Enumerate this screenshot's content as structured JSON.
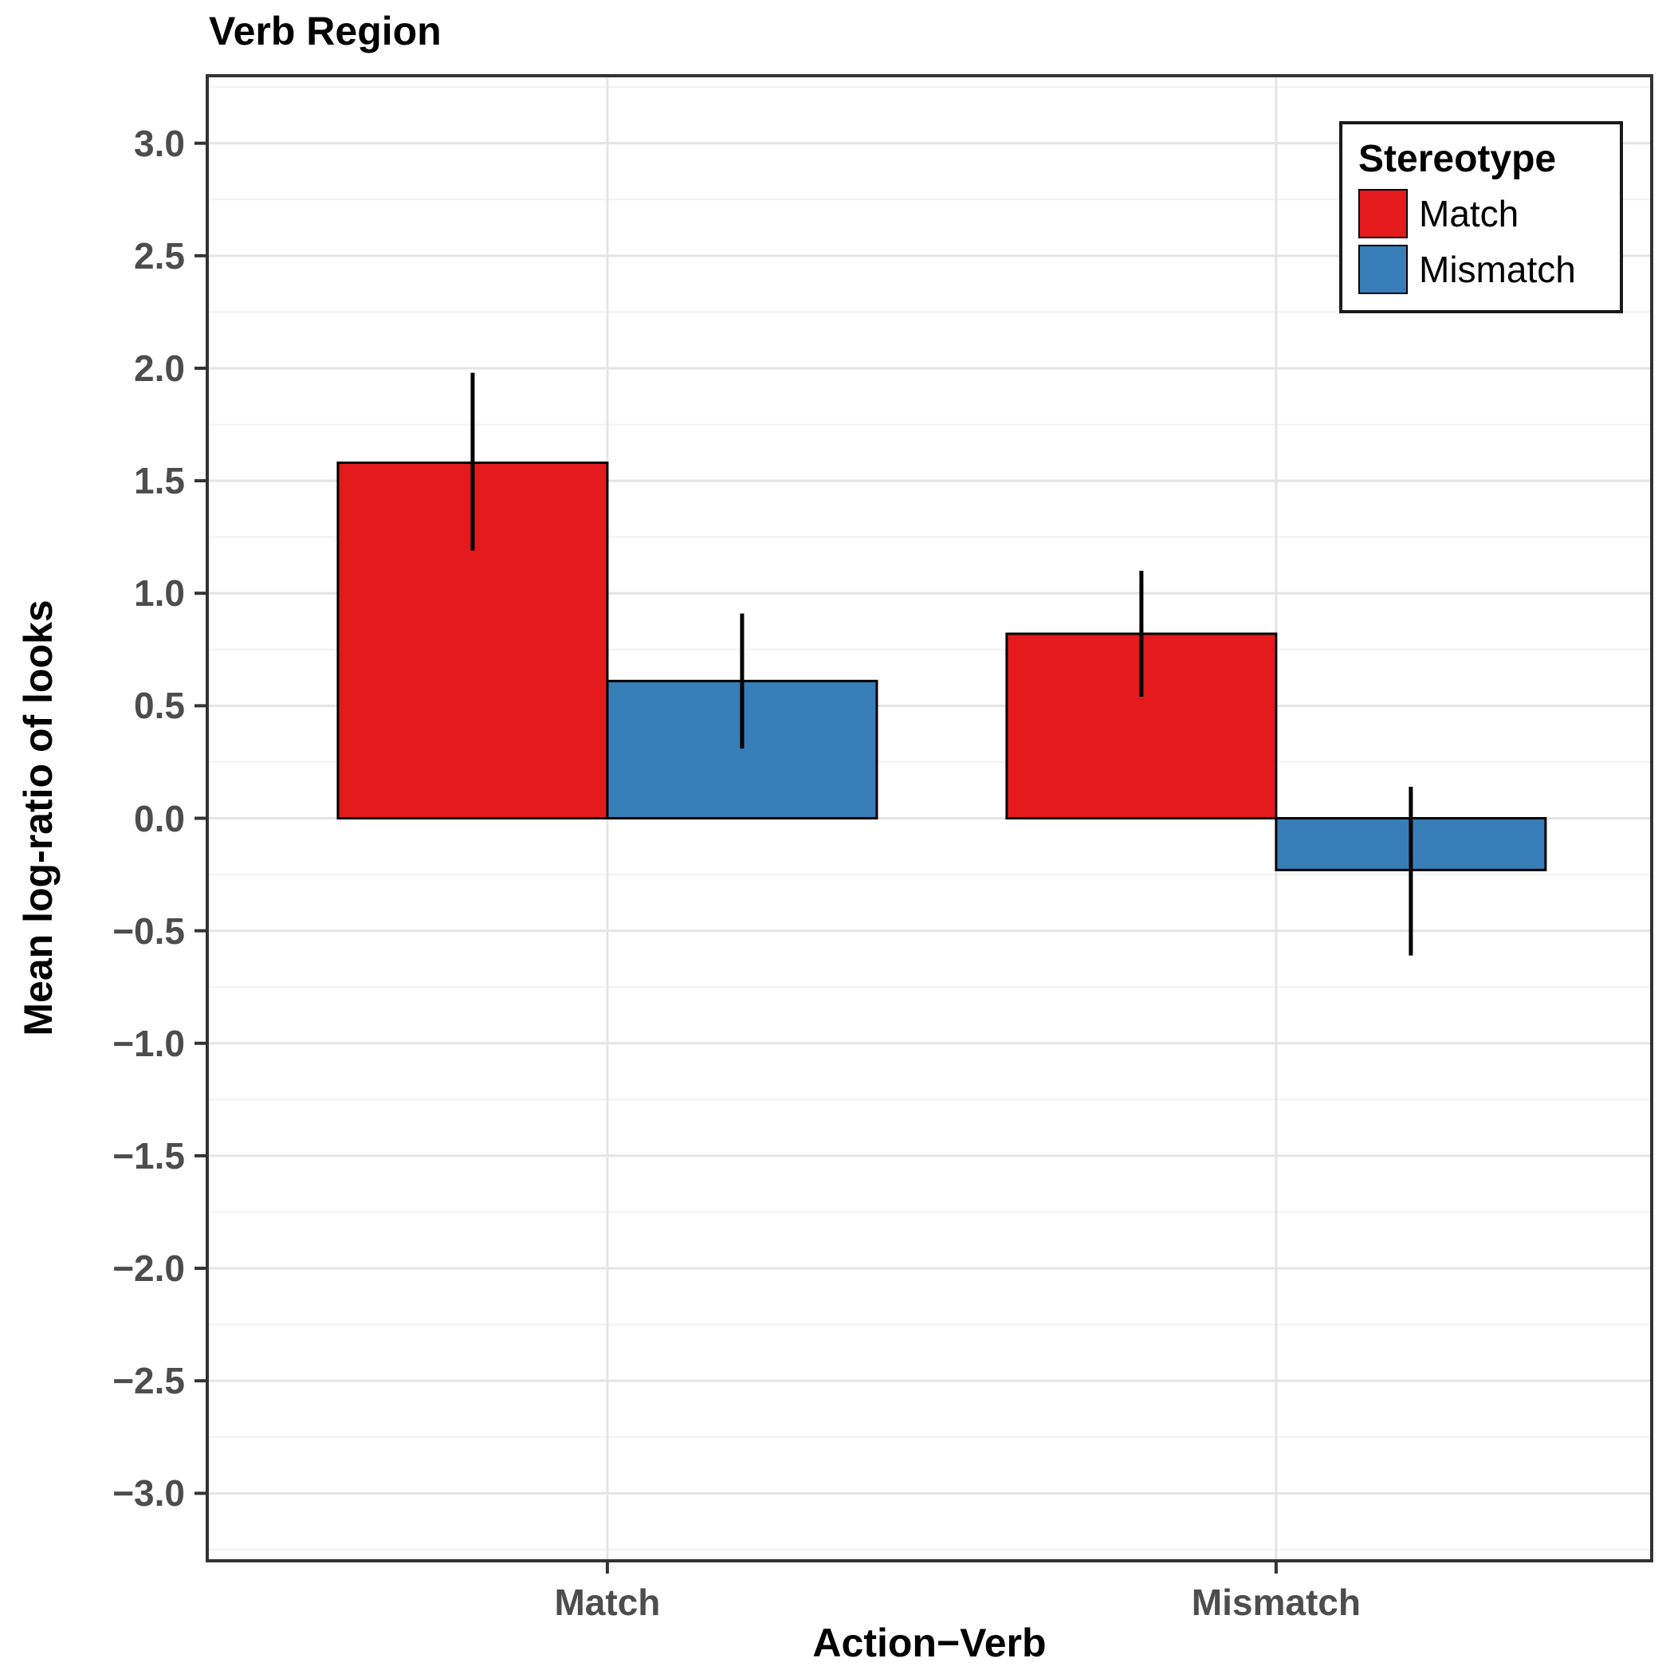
{
  "chart_data": {
    "type": "bar",
    "title": "Verb Region",
    "xlabel": "Action−Verb",
    "ylabel": "Mean log-ratio of looks",
    "legend": {
      "title": "Stereotype",
      "position": "top-right-inside",
      "entries": [
        "Match",
        "Mismatch"
      ]
    },
    "categories": [
      "Match",
      "Mismatch"
    ],
    "series": [
      {
        "name": "Match",
        "color": "#E41A1C",
        "values": [
          1.58,
          0.82
        ],
        "error_low": [
          1.19,
          0.54
        ],
        "error_high": [
          1.98,
          1.1
        ]
      },
      {
        "name": "Mismatch",
        "color": "#377EB8",
        "values": [
          0.61,
          -0.23
        ],
        "error_low": [
          0.31,
          -0.61
        ],
        "error_high": [
          0.91,
          0.14
        ]
      }
    ],
    "ylim": [
      -3.3,
      3.3
    ],
    "ybase": 0,
    "yticks": [
      {
        "v": 3.0,
        "label": "3.0"
      },
      {
        "v": 2.5,
        "label": "2.5"
      },
      {
        "v": 2.0,
        "label": "2.0"
      },
      {
        "v": 1.5,
        "label": "1.5"
      },
      {
        "v": 1.0,
        "label": "1.0"
      },
      {
        "v": 0.5,
        "label": "0.5"
      },
      {
        "v": 0.0,
        "label": "0.0"
      },
      {
        "v": -0.5,
        "label": "−0.5"
      },
      {
        "v": -1.0,
        "label": "−1.0"
      },
      {
        "v": -1.5,
        "label": "−1.5"
      },
      {
        "v": -2.0,
        "label": "−2.0"
      },
      {
        "v": -2.5,
        "label": "−2.5"
      },
      {
        "v": -3.0,
        "label": "−3.0"
      }
    ],
    "grid": true
  },
  "style": {
    "grid_major": "#E4E4E4",
    "grid_minor": "#F2F2F2",
    "axis_text_color": "#4D4D4D",
    "panel_border_color": "#333333",
    "bar_stroke": "#000000",
    "error_bar_color": "#000000"
  }
}
